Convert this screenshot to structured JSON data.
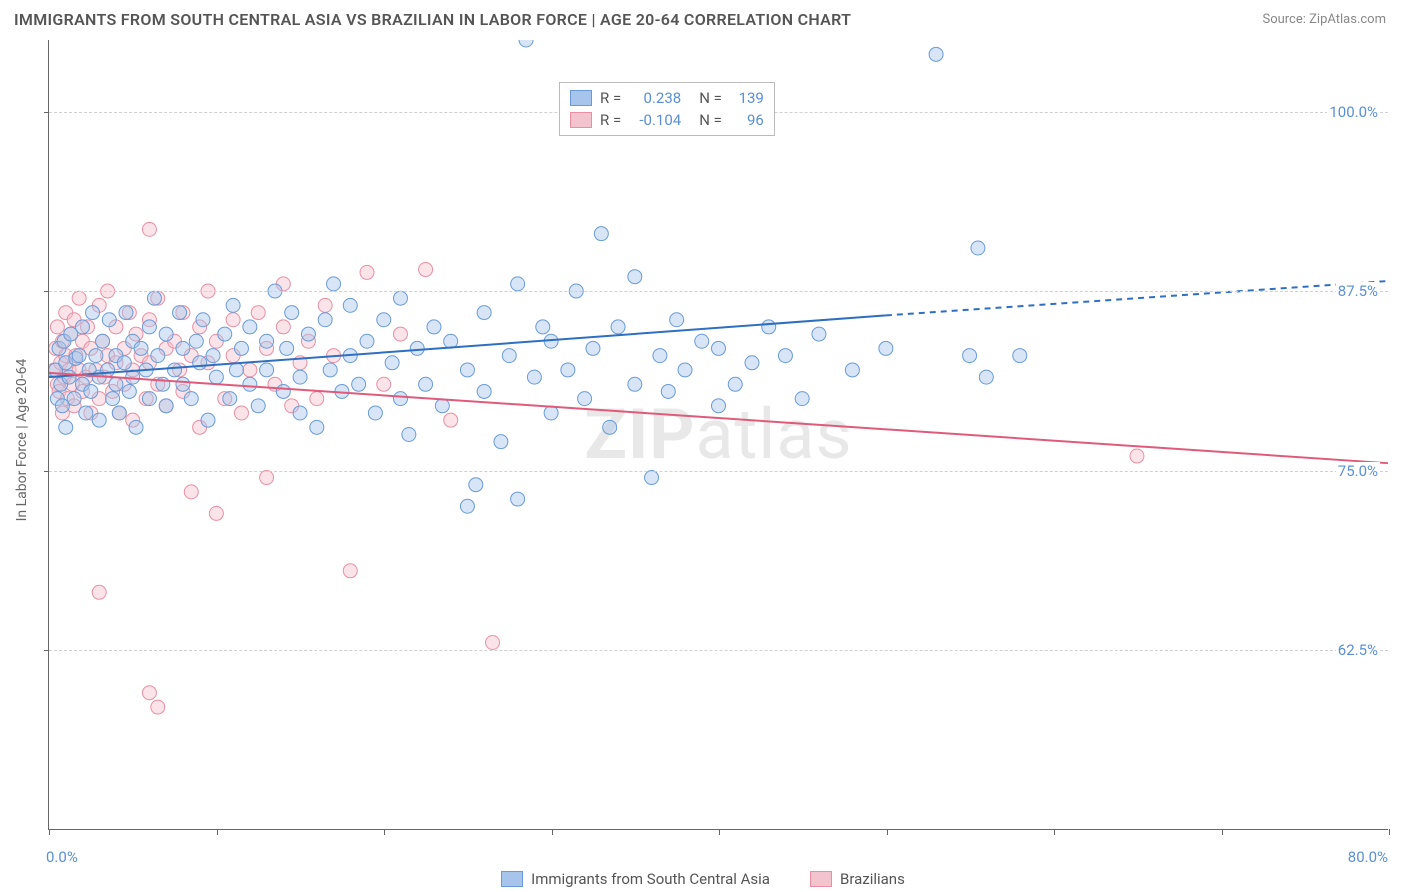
{
  "title": "IMMIGRANTS FROM SOUTH CENTRAL ASIA VS BRAZILIAN IN LABOR FORCE | AGE 20-64 CORRELATION CHART",
  "source": "Source: ZipAtlas.com",
  "watermark_a": "ZIP",
  "watermark_b": "atlas",
  "yaxis_label": "In Labor Force | Age 20-64",
  "chart": {
    "type": "scatter",
    "xlim": [
      0,
      80
    ],
    "ylim": [
      50,
      105
    ],
    "xtick_positions": [
      0,
      10,
      20,
      30,
      40,
      50,
      60,
      70,
      80
    ],
    "xtick_labels_shown": {
      "0": "0.0%",
      "80": "80.0%"
    },
    "ytick_positions": [
      62.5,
      75.0,
      87.5,
      100.0
    ],
    "ytick_labels": [
      "62.5%",
      "75.0%",
      "87.5%",
      "100.0%"
    ],
    "background_color": "#ffffff",
    "grid_color": "#d0d0d0",
    "axis_color": "#666666",
    "label_color": "#5a8fd6",
    "title_color": "#555555",
    "title_fontsize": 16,
    "label_fontsize": 15,
    "marker_radius": 7,
    "marker_opacity": 0.45,
    "line_width": 2,
    "dash_pattern": "6 5"
  },
  "series": [
    {
      "name": "Immigrants from South Central Asia",
      "fill": "#a7c5ec",
      "stroke": "#6a9bd8",
      "line_color": "#2f6fc0",
      "R": "0.238",
      "N": "139",
      "regression": {
        "x1": 0,
        "y1": 81.5,
        "x2_solid": 50,
        "y2_solid": 85.8,
        "x2": 80,
        "y2": 88.2
      },
      "points": [
        [
          0.4,
          82.0
        ],
        [
          0.5,
          80.0
        ],
        [
          0.6,
          83.5
        ],
        [
          0.7,
          81.0
        ],
        [
          0.8,
          79.5
        ],
        [
          0.9,
          84.0
        ],
        [
          1.0,
          82.5
        ],
        [
          1.0,
          78.0
        ],
        [
          1.2,
          81.5
        ],
        [
          1.3,
          84.5
        ],
        [
          1.5,
          80.0
        ],
        [
          1.6,
          82.8
        ],
        [
          1.8,
          83.0
        ],
        [
          2.0,
          81.0
        ],
        [
          2.0,
          85.0
        ],
        [
          2.2,
          79.0
        ],
        [
          2.4,
          82.0
        ],
        [
          2.5,
          80.5
        ],
        [
          2.6,
          86.0
        ],
        [
          2.8,
          83.0
        ],
        [
          3.0,
          81.5
        ],
        [
          3.0,
          78.5
        ],
        [
          3.2,
          84.0
        ],
        [
          3.5,
          82.0
        ],
        [
          3.6,
          85.5
        ],
        [
          3.8,
          80.0
        ],
        [
          4.0,
          83.0
        ],
        [
          4.0,
          81.0
        ],
        [
          4.2,
          79.0
        ],
        [
          4.5,
          82.5
        ],
        [
          4.6,
          86.0
        ],
        [
          4.8,
          80.5
        ],
        [
          5.0,
          84.0
        ],
        [
          5.0,
          81.5
        ],
        [
          5.2,
          78.0
        ],
        [
          5.5,
          83.5
        ],
        [
          5.8,
          82.0
        ],
        [
          6.0,
          85.0
        ],
        [
          6.0,
          80.0
        ],
        [
          6.3,
          87.0
        ],
        [
          6.5,
          83.0
        ],
        [
          6.8,
          81.0
        ],
        [
          7.0,
          84.5
        ],
        [
          7.0,
          79.5
        ],
        [
          7.5,
          82.0
        ],
        [
          7.8,
          86.0
        ],
        [
          8.0,
          83.5
        ],
        [
          8.0,
          81.0
        ],
        [
          8.5,
          80.0
        ],
        [
          8.8,
          84.0
        ],
        [
          9.0,
          82.5
        ],
        [
          9.2,
          85.5
        ],
        [
          9.5,
          78.5
        ],
        [
          9.8,
          83.0
        ],
        [
          10.0,
          81.5
        ],
        [
          10.5,
          84.5
        ],
        [
          10.8,
          80.0
        ],
        [
          11.0,
          86.5
        ],
        [
          11.2,
          82.0
        ],
        [
          11.5,
          83.5
        ],
        [
          12.0,
          81.0
        ],
        [
          12.0,
          85.0
        ],
        [
          12.5,
          79.5
        ],
        [
          13.0,
          84.0
        ],
        [
          13.0,
          82.0
        ],
        [
          13.5,
          87.5
        ],
        [
          14.0,
          80.5
        ],
        [
          14.2,
          83.5
        ],
        [
          14.5,
          86.0
        ],
        [
          15.0,
          81.5
        ],
        [
          15.0,
          79.0
        ],
        [
          15.5,
          84.5
        ],
        [
          16.0,
          78.0
        ],
        [
          16.5,
          85.5
        ],
        [
          16.8,
          82.0
        ],
        [
          17.0,
          88.0
        ],
        [
          17.5,
          80.5
        ],
        [
          18.0,
          83.0
        ],
        [
          18.0,
          86.5
        ],
        [
          18.5,
          81.0
        ],
        [
          19.0,
          84.0
        ],
        [
          19.5,
          79.0
        ],
        [
          20.0,
          85.5
        ],
        [
          20.5,
          82.5
        ],
        [
          21.0,
          80.0
        ],
        [
          21.0,
          87.0
        ],
        [
          21.5,
          77.5
        ],
        [
          22.0,
          83.5
        ],
        [
          22.5,
          81.0
        ],
        [
          23.0,
          85.0
        ],
        [
          23.5,
          79.5
        ],
        [
          24.0,
          84.0
        ],
        [
          25.0,
          72.5
        ],
        [
          25.0,
          82.0
        ],
        [
          25.5,
          74.0
        ],
        [
          26.0,
          86.0
        ],
        [
          26.0,
          80.5
        ],
        [
          27.0,
          77.0
        ],
        [
          27.5,
          83.0
        ],
        [
          28.0,
          88.0
        ],
        [
          28.0,
          73.0
        ],
        [
          28.5,
          105.0
        ],
        [
          29.0,
          81.5
        ],
        [
          29.5,
          85.0
        ],
        [
          30.0,
          79.0
        ],
        [
          30.0,
          84.0
        ],
        [
          31.0,
          82.0
        ],
        [
          31.5,
          87.5
        ],
        [
          32.0,
          80.0
        ],
        [
          32.5,
          83.5
        ],
        [
          33.0,
          91.5
        ],
        [
          33.5,
          78.0
        ],
        [
          34.0,
          85.0
        ],
        [
          35.0,
          81.0
        ],
        [
          35.0,
          88.5
        ],
        [
          36.0,
          74.5
        ],
        [
          36.5,
          83.0
        ],
        [
          37.0,
          80.5
        ],
        [
          37.5,
          85.5
        ],
        [
          38.0,
          82.0
        ],
        [
          39.0,
          84.0
        ],
        [
          40.0,
          79.5
        ],
        [
          40.0,
          83.5
        ],
        [
          41.0,
          81.0
        ],
        [
          42.0,
          82.5
        ],
        [
          43.0,
          85.0
        ],
        [
          44.0,
          83.0
        ],
        [
          45.0,
          80.0
        ],
        [
          46.0,
          84.5
        ],
        [
          48.0,
          82.0
        ],
        [
          50.0,
          83.5
        ],
        [
          53.0,
          104.0
        ],
        [
          55.0,
          83.0
        ],
        [
          55.5,
          90.5
        ],
        [
          56.0,
          81.5
        ],
        [
          58.0,
          83.0
        ]
      ]
    },
    {
      "name": "Brazilians",
      "fill": "#f4c4ce",
      "stroke": "#e98fa3",
      "line_color": "#e05a7b",
      "R": "-0.104",
      "N": "96",
      "regression": {
        "x1": 0,
        "y1": 81.8,
        "x2_solid": 80,
        "y2_solid": 75.5,
        "x2": 80,
        "y2": 75.5
      },
      "points": [
        [
          0.3,
          82.0
        ],
        [
          0.4,
          83.5
        ],
        [
          0.5,
          81.0
        ],
        [
          0.5,
          85.0
        ],
        [
          0.6,
          80.5
        ],
        [
          0.7,
          82.5
        ],
        [
          0.8,
          84.0
        ],
        [
          0.8,
          79.0
        ],
        [
          0.9,
          81.5
        ],
        [
          1.0,
          83.0
        ],
        [
          1.0,
          86.0
        ],
        [
          1.1,
          80.0
        ],
        [
          1.2,
          82.0
        ],
        [
          1.3,
          84.5
        ],
        [
          1.4,
          81.0
        ],
        [
          1.5,
          85.5
        ],
        [
          1.5,
          79.5
        ],
        [
          1.6,
          83.0
        ],
        [
          1.8,
          82.0
        ],
        [
          1.8,
          87.0
        ],
        [
          2.0,
          80.5
        ],
        [
          2.0,
          84.0
        ],
        [
          2.2,
          81.5
        ],
        [
          2.3,
          85.0
        ],
        [
          2.5,
          83.5
        ],
        [
          2.5,
          79.0
        ],
        [
          2.8,
          82.0
        ],
        [
          3.0,
          86.5
        ],
        [
          3.0,
          80.0
        ],
        [
          3.2,
          84.0
        ],
        [
          3.3,
          81.5
        ],
        [
          3.5,
          83.0
        ],
        [
          3.5,
          87.5
        ],
        [
          3.8,
          80.5
        ],
        [
          4.0,
          82.5
        ],
        [
          4.0,
          85.0
        ],
        [
          4.2,
          79.0
        ],
        [
          4.5,
          83.5
        ],
        [
          4.5,
          81.0
        ],
        [
          4.8,
          86.0
        ],
        [
          5.0,
          82.0
        ],
        [
          5.0,
          78.5
        ],
        [
          5.2,
          84.5
        ],
        [
          5.5,
          83.0
        ],
        [
          5.8,
          80.0
        ],
        [
          6.0,
          85.5
        ],
        [
          6.0,
          82.5
        ],
        [
          6.0,
          91.8
        ],
        [
          6.5,
          81.0
        ],
        [
          6.5,
          87.0
        ],
        [
          7.0,
          83.5
        ],
        [
          7.0,
          79.5
        ],
        [
          7.5,
          84.0
        ],
        [
          7.8,
          82.0
        ],
        [
          8.0,
          86.0
        ],
        [
          8.0,
          80.5
        ],
        [
          8.5,
          73.5
        ],
        [
          8.5,
          83.0
        ],
        [
          9.0,
          85.0
        ],
        [
          9.0,
          78.0
        ],
        [
          9.5,
          82.5
        ],
        [
          9.5,
          87.5
        ],
        [
          10.0,
          72.0
        ],
        [
          10.0,
          84.0
        ],
        [
          10.5,
          80.0
        ],
        [
          11.0,
          83.0
        ],
        [
          11.0,
          85.5
        ],
        [
          11.5,
          79.0
        ],
        [
          12.0,
          82.0
        ],
        [
          12.5,
          86.0
        ],
        [
          13.0,
          74.5
        ],
        [
          13.0,
          83.5
        ],
        [
          13.5,
          81.0
        ],
        [
          14.0,
          85.0
        ],
        [
          14.0,
          88.0
        ],
        [
          14.5,
          79.5
        ],
        [
          15.0,
          82.5
        ],
        [
          15.5,
          84.0
        ],
        [
          16.0,
          80.0
        ],
        [
          16.5,
          86.5
        ],
        [
          17.0,
          83.0
        ],
        [
          18.0,
          68.0
        ],
        [
          19.0,
          88.8
        ],
        [
          20.0,
          81.0
        ],
        [
          21.0,
          84.5
        ],
        [
          22.5,
          89.0
        ],
        [
          24.0,
          78.5
        ],
        [
          26.5,
          63.0
        ],
        [
          3.0,
          66.5
        ],
        [
          6.0,
          59.5
        ],
        [
          6.5,
          58.5
        ],
        [
          65.0,
          76.0
        ]
      ]
    }
  ],
  "bottom_legend": [
    {
      "label": "Immigrants from South Central Asia",
      "fill": "#a7c5ec",
      "stroke": "#6a9bd8"
    },
    {
      "label": "Brazilians",
      "fill": "#f4c4ce",
      "stroke": "#e98fa3"
    }
  ]
}
